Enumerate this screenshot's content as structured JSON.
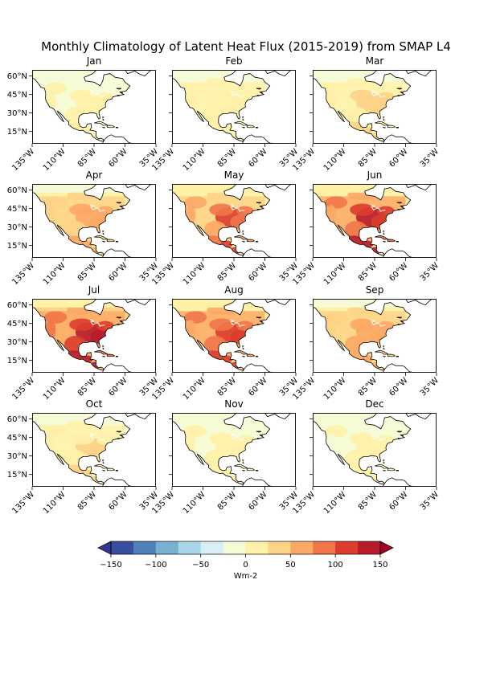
{
  "title": "Monthly Climatology of Latent Heat Flux (2015-2019) from SMAP L4",
  "map": {
    "extent": {
      "lon": [
        -135,
        -35
      ],
      "lat": [
        5,
        65
      ]
    },
    "lon_ticks": [
      -135,
      -110,
      -85,
      -60,
      -35
    ],
    "lon_tick_labels": [
      "135°W",
      "110°W",
      "85°W",
      "60°W",
      "35°W"
    ],
    "lat_ticks": [
      15,
      30,
      45,
      60
    ],
    "lat_tick_labels": [
      "15°N",
      "30°N",
      "45°N",
      "60°N"
    ],
    "land_color": "#ffffff",
    "coastline_color": "#000000"
  },
  "panels": [
    {
      "month": "Jan",
      "intensity": 0.15
    },
    {
      "month": "Feb",
      "intensity": 0.18
    },
    {
      "month": "Mar",
      "intensity": 0.3
    },
    {
      "month": "Apr",
      "intensity": 0.5
    },
    {
      "month": "May",
      "intensity": 0.72
    },
    {
      "month": "Jun",
      "intensity": 0.92
    },
    {
      "month": "Jul",
      "intensity": 1.0
    },
    {
      "month": "Aug",
      "intensity": 0.82
    },
    {
      "month": "Sep",
      "intensity": 0.55
    },
    {
      "month": "Oct",
      "intensity": 0.28
    },
    {
      "month": "Nov",
      "intensity": 0.15
    },
    {
      "month": "Dec",
      "intensity": 0.12
    }
  ],
  "colorbar": {
    "label": "Wm-2",
    "ticks": [
      -150,
      -100,
      -50,
      0,
      50,
      100,
      150
    ],
    "tick_labels": [
      "−150",
      "−100",
      "−50",
      "0",
      "50",
      "100",
      "150"
    ],
    "colormap": "RdYlBu_r",
    "colors": [
      "#313695",
      "#4575b4",
      "#74add1",
      "#abd9e9",
      "#e0f3f8",
      "#ffffbf",
      "#fee090",
      "#fdae61",
      "#f46d43",
      "#d73027",
      "#a50026"
    ],
    "level_colors": [
      "#3a4ea0",
      "#4f80b9",
      "#79afd3",
      "#a9d5e8",
      "#d9eef5",
      "#f5fbd6",
      "#fff1a8",
      "#fdd387",
      "#fba965",
      "#f07549",
      "#dc3d2e",
      "#b71c2b"
    ],
    "under_color": "#313695",
    "over_color": "#a50026",
    "extend": "both"
  }
}
